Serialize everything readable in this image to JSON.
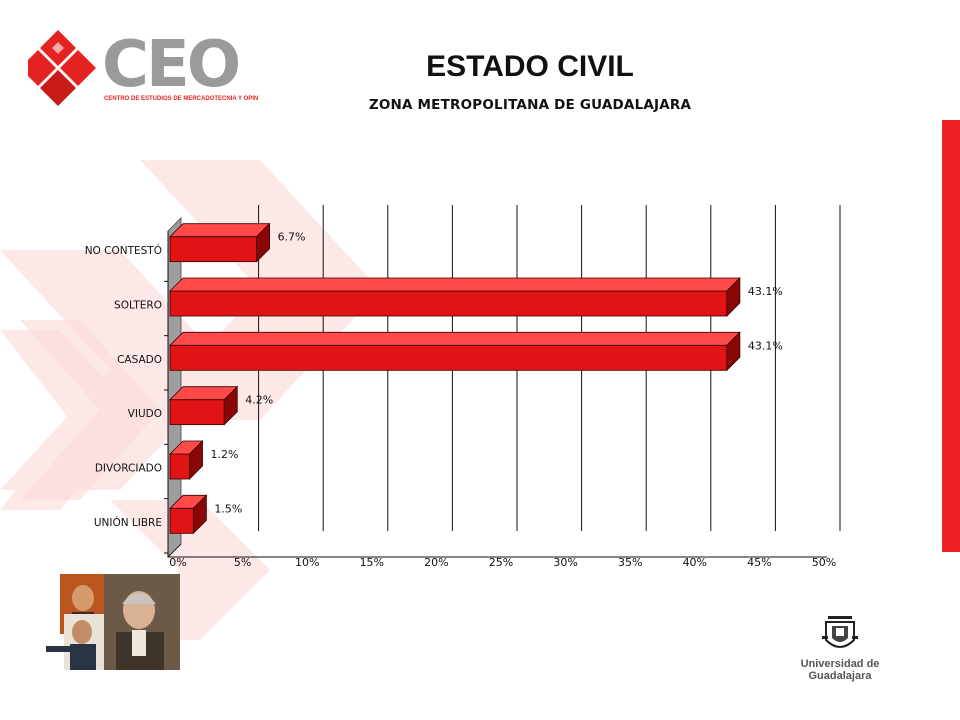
{
  "header": {
    "title": "ESTADO CIVIL",
    "subtitle": "ZONA METROPOLITANA DE GUADALAJARA"
  },
  "logo": {
    "text": "CEO",
    "tagline": "CENTRO DE ESTUDIOS DE MERCADOTECNIA Y OPINIÓN"
  },
  "footer": {
    "university": "Universidad de Guadalajara"
  },
  "colors": {
    "bar_front": "#e01414",
    "bar_top": "#ff4a4a",
    "bar_side": "#8a0606",
    "accent_strip": "#ee2222",
    "logo_gray": "#9a9a9a",
    "logo_red": "#e52320"
  },
  "chart_data": {
    "type": "bar",
    "orientation": "horizontal",
    "style": "3d",
    "categories": [
      "NO CONTESTÓ",
      "SOLTERO",
      "CASADO",
      "VIUDO",
      "DIVORCIADO",
      "UNIÓN LIBRE"
    ],
    "values": [
      6.7,
      43.1,
      43.1,
      4.2,
      1.2,
      1.5
    ],
    "data_labels": [
      "6.7%",
      "43.1%",
      "43.1%",
      "4.2%",
      "1.2%",
      "1.5%"
    ],
    "x_ticks": [
      "0%",
      "5%",
      "10%",
      "15%",
      "20%",
      "25%",
      "30%",
      "35%",
      "40%",
      "45%",
      "50%"
    ],
    "xlim": [
      0,
      50
    ],
    "grid": "vertical",
    "legend": "none"
  }
}
